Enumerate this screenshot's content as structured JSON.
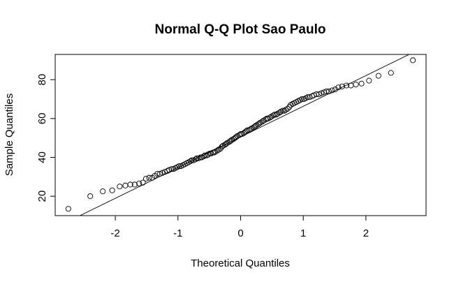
{
  "chart_data": {
    "type": "scatter",
    "title": "Normal Q-Q Plot Sao Paulo",
    "xlabel": "Theoretical Quantiles",
    "ylabel": "Sample Quantiles",
    "xlim": [
      -2.96,
      2.96
    ],
    "ylim": [
      10,
      93
    ],
    "xticks": [
      -2,
      -1,
      0,
      1,
      2
    ],
    "yticks": [
      20,
      40,
      60,
      80
    ],
    "grid": false,
    "reference_line": {
      "intercept": 50.5,
      "slope": 15.8
    },
    "points": [
      [
        -2.75,
        13.5
      ],
      [
        -2.4,
        20
      ],
      [
        -2.2,
        22.5
      ],
      [
        -2.05,
        23
      ],
      [
        -1.93,
        25
      ],
      [
        -1.84,
        25.5
      ],
      [
        -1.76,
        26
      ],
      [
        -1.69,
        26
      ],
      [
        -1.62,
        26.5
      ],
      [
        -1.56,
        27
      ],
      [
        -1.51,
        29
      ],
      [
        -1.46,
        29.5
      ],
      [
        -1.41,
        29.5
      ],
      [
        -1.37,
        30.5
      ],
      [
        -1.33,
        31.5
      ],
      [
        -1.29,
        31.5
      ],
      [
        -1.25,
        32
      ],
      [
        -1.21,
        32.5
      ],
      [
        -1.17,
        33
      ],
      [
        -1.14,
        33.5
      ],
      [
        -1.1,
        34
      ],
      [
        -1.07,
        34
      ],
      [
        -1.04,
        34.5
      ],
      [
        -1.01,
        35
      ],
      [
        -0.98,
        35.5
      ],
      [
        -0.95,
        35.5
      ],
      [
        -0.92,
        36
      ],
      [
        -0.89,
        36.5
      ],
      [
        -0.86,
        37
      ],
      [
        -0.83,
        37.5
      ],
      [
        -0.8,
        38
      ],
      [
        -0.78,
        38.5
      ],
      [
        -0.75,
        38.5
      ],
      [
        -0.72,
        39
      ],
      [
        -0.7,
        39.5
      ],
      [
        -0.67,
        39.5
      ],
      [
        -0.64,
        40
      ],
      [
        -0.62,
        40
      ],
      [
        -0.59,
        40.5
      ],
      [
        -0.57,
        41
      ],
      [
        -0.54,
        41
      ],
      [
        -0.52,
        41.5
      ],
      [
        -0.49,
        42
      ],
      [
        -0.47,
        42
      ],
      [
        -0.44,
        42.5
      ],
      [
        -0.42,
        42.5
      ],
      [
        -0.4,
        43
      ],
      [
        -0.37,
        43.5
      ],
      [
        -0.35,
        44
      ],
      [
        -0.32,
        44.5
      ],
      [
        -0.3,
        45.5
      ],
      [
        -0.28,
        46
      ],
      [
        -0.25,
        46.5
      ],
      [
        -0.23,
        47
      ],
      [
        -0.21,
        47.5
      ],
      [
        -0.18,
        48
      ],
      [
        -0.16,
        48.5
      ],
      [
        -0.14,
        49
      ],
      [
        -0.11,
        49.5
      ],
      [
        -0.09,
        50
      ],
      [
        -0.07,
        50.5
      ],
      [
        -0.05,
        51
      ],
      [
        -0.02,
        51.5
      ],
      [
        0,
        52
      ],
      [
        0.02,
        52
      ],
      [
        0.05,
        52.5
      ],
      [
        0.07,
        53
      ],
      [
        0.09,
        53.5
      ],
      [
        0.11,
        54
      ],
      [
        0.14,
        54
      ],
      [
        0.16,
        54.5
      ],
      [
        0.18,
        55
      ],
      [
        0.21,
        55.5
      ],
      [
        0.23,
        56
      ],
      [
        0.25,
        56.5
      ],
      [
        0.28,
        57
      ],
      [
        0.3,
        57.5
      ],
      [
        0.32,
        58
      ],
      [
        0.35,
        58.5
      ],
      [
        0.37,
        59
      ],
      [
        0.4,
        59.5
      ],
      [
        0.42,
        60
      ],
      [
        0.44,
        60
      ],
      [
        0.47,
        60.5
      ],
      [
        0.49,
        61
      ],
      [
        0.52,
        61.5
      ],
      [
        0.54,
        62
      ],
      [
        0.57,
        62
      ],
      [
        0.59,
        62.5
      ],
      [
        0.62,
        63
      ],
      [
        0.64,
        63.5
      ],
      [
        0.67,
        64
      ],
      [
        0.7,
        64
      ],
      [
        0.72,
        64.5
      ],
      [
        0.75,
        65
      ],
      [
        0.78,
        66
      ],
      [
        0.8,
        67
      ],
      [
        0.83,
        67.5
      ],
      [
        0.86,
        68
      ],
      [
        0.89,
        68.5
      ],
      [
        0.92,
        69
      ],
      [
        0.95,
        69.5
      ],
      [
        0.98,
        70
      ],
      [
        1.01,
        70
      ],
      [
        1.04,
        70.5
      ],
      [
        1.07,
        71
      ],
      [
        1.1,
        71
      ],
      [
        1.14,
        71.5
      ],
      [
        1.17,
        72
      ],
      [
        1.21,
        72.5
      ],
      [
        1.25,
        72.5
      ],
      [
        1.29,
        73
      ],
      [
        1.33,
        73.5
      ],
      [
        1.37,
        74
      ],
      [
        1.41,
        74
      ],
      [
        1.46,
        74.5
      ],
      [
        1.51,
        75
      ],
      [
        1.56,
        76
      ],
      [
        1.62,
        76.5
      ],
      [
        1.69,
        77
      ],
      [
        1.76,
        77
      ],
      [
        1.84,
        77.5
      ],
      [
        1.93,
        78
      ],
      [
        2.05,
        79.5
      ],
      [
        2.2,
        82
      ],
      [
        2.4,
        83.5
      ],
      [
        2.75,
        90
      ]
    ]
  }
}
